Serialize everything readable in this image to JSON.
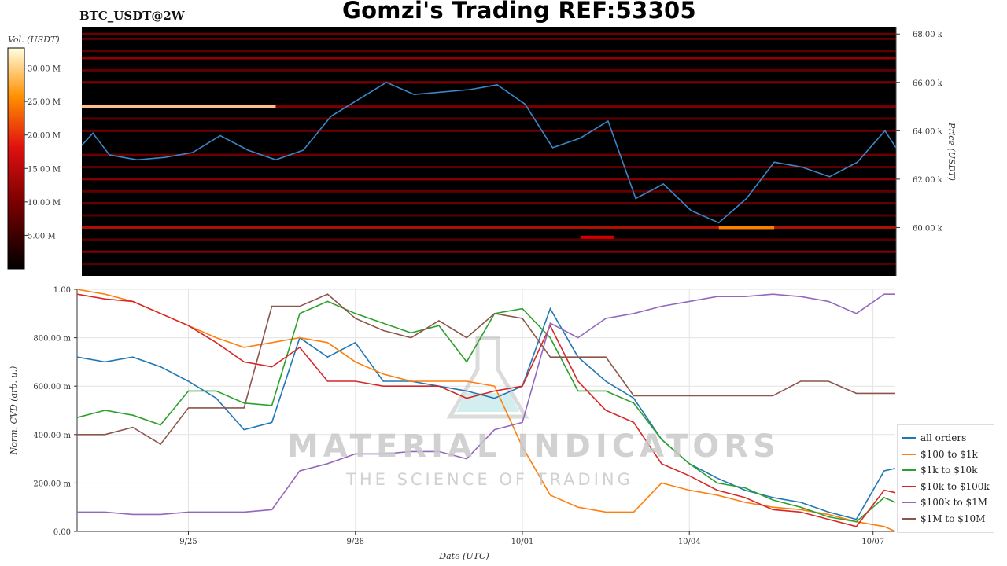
{
  "header": {
    "pair": "BTC_USDT@2W",
    "title": "Gomzi's Trading REF:53305"
  },
  "watermark": {
    "main": "MATERIAL INDICATORS",
    "sub": "THE SCIENCE OF TRADING"
  },
  "chart_data": [
    {
      "type": "heatmap",
      "title": "Gomzi's Trading REF:53305",
      "subtitle": "BTC_USDT@2W",
      "ylabel": "Price (USDT)",
      "colorbar": {
        "label": "Vol. (USDT)",
        "ticks": [
          "5.00 M",
          "10.00 M",
          "15.00 M",
          "20.00 M",
          "25.00 M",
          "30.00 M"
        ],
        "range": [
          0,
          33
        ]
      },
      "ylim": [
        58000,
        68300
      ],
      "yticks": [
        60000,
        62000,
        64000,
        66000,
        68000
      ],
      "ytick_labels": [
        "60.00 k",
        "62.00 k",
        "64.00 k",
        "66.00 k",
        "68.00 k"
      ],
      "xlim": [
        0,
        14.7
      ],
      "colors": {
        "background": "#000000",
        "price_line": "#3a86c8"
      },
      "price_line": {
        "x": [
          0,
          0.2,
          0.5,
          1,
          1.5,
          2,
          2.5,
          3,
          3.5,
          4,
          4.5,
          5,
          5.5,
          6,
          6.5,
          7,
          7.5,
          8,
          8.5,
          9,
          9.5,
          10,
          10.5,
          11,
          11.5,
          12,
          12.5,
          13,
          13.5,
          14,
          14.5,
          14.7
        ],
        "y": [
          63400,
          63900,
          63000,
          62800,
          62900,
          63100,
          63800,
          63200,
          62800,
          63200,
          64600,
          65300,
          66000,
          65500,
          65600,
          65700,
          65900,
          65100,
          63300,
          63700,
          64400,
          61200,
          61800,
          60700,
          60200,
          61200,
          62700,
          62500,
          62100,
          62700,
          64000,
          63300
        ]
      },
      "liquidity_bands": [
        {
          "price": 68000,
          "intensity": 0.35
        },
        {
          "price": 67800,
          "intensity": 0.3
        },
        {
          "price": 67300,
          "intensity": 0.28
        },
        {
          "price": 67000,
          "intensity": 0.5
        },
        {
          "price": 66500,
          "intensity": 0.3
        },
        {
          "price": 66000,
          "intensity": 0.45
        },
        {
          "price": 65000,
          "intensity": 0.4
        },
        {
          "price": 64500,
          "intensity": 0.3
        },
        {
          "price": 64000,
          "intensity": 0.35
        },
        {
          "price": 63000,
          "intensity": 0.35
        },
        {
          "price": 62500,
          "intensity": 0.3
        },
        {
          "price": 62000,
          "intensity": 0.45
        },
        {
          "price": 61500,
          "intensity": 0.3
        },
        {
          "price": 61000,
          "intensity": 0.35
        },
        {
          "price": 60500,
          "intensity": 0.25
        },
        {
          "price": 60000,
          "intensity": 0.6
        },
        {
          "price": 59500,
          "intensity": 0.25
        },
        {
          "price": 59000,
          "intensity": 0.45
        },
        {
          "price": 58500,
          "intensity": 0.25
        }
      ],
      "hot_spots": [
        {
          "price": 65000,
          "x_start": 0,
          "x_end": 3.5,
          "intensity": 1.0
        },
        {
          "price": 60000,
          "x_start": 11.5,
          "x_end": 12.5,
          "intensity": 0.85
        },
        {
          "price": 59600,
          "x_start": 9.0,
          "x_end": 9.6,
          "intensity": 0.55
        }
      ]
    },
    {
      "type": "line",
      "xlabel": "Date (UTC)",
      "ylabel": "Norm. CVD (arb. u.)",
      "ylim": [
        0,
        1
      ],
      "yticks": [
        0,
        0.2,
        0.4,
        0.6,
        0.8,
        1.0
      ],
      "ytick_labels": [
        "0.00",
        "200.00 m",
        "400.00 m",
        "600.00 m",
        "800.00 m",
        "1.00"
      ],
      "xlim": [
        0,
        14.7
      ],
      "xticks": [
        2,
        5,
        8,
        11,
        14.3
      ],
      "xtick_labels": [
        "9/25",
        "9/28",
        "10/01",
        "10/04",
        "10/07"
      ],
      "grid": true,
      "legend_position": "bottom-right",
      "x": [
        0,
        0.5,
        1,
        1.5,
        2,
        2.5,
        3,
        3.5,
        4,
        4.5,
        5,
        5.5,
        6,
        6.5,
        7,
        7.5,
        8,
        8.5,
        9,
        9.5,
        10,
        10.5,
        11,
        11.5,
        12,
        12.5,
        13,
        13.5,
        14,
        14.5,
        14.7
      ],
      "series": [
        {
          "name": "all orders",
          "color": "#1f77b4",
          "values": [
            0.72,
            0.7,
            0.72,
            0.68,
            0.62,
            0.55,
            0.42,
            0.45,
            0.8,
            0.72,
            0.78,
            0.62,
            0.62,
            0.6,
            0.58,
            0.55,
            0.6,
            0.92,
            0.72,
            0.62,
            0.55,
            0.38,
            0.28,
            0.22,
            0.17,
            0.14,
            0.12,
            0.08,
            0.05,
            0.25,
            0.26
          ]
        },
        {
          "name": "$100 to $1k",
          "color": "#ff7f0e",
          "values": [
            1.0,
            0.98,
            0.95,
            0.9,
            0.85,
            0.8,
            0.76,
            0.78,
            0.8,
            0.78,
            0.7,
            0.65,
            0.62,
            0.62,
            0.62,
            0.6,
            0.35,
            0.15,
            0.1,
            0.08,
            0.08,
            0.2,
            0.17,
            0.15,
            0.12,
            0.1,
            0.09,
            0.07,
            0.04,
            0.02,
            0.0
          ]
        },
        {
          "name": "$1k to $10k",
          "color": "#2ca02c",
          "values": [
            0.47,
            0.5,
            0.48,
            0.44,
            0.58,
            0.58,
            0.53,
            0.52,
            0.9,
            0.95,
            0.9,
            0.86,
            0.82,
            0.85,
            0.7,
            0.9,
            0.92,
            0.8,
            0.58,
            0.58,
            0.53,
            0.38,
            0.28,
            0.2,
            0.18,
            0.13,
            0.1,
            0.06,
            0.04,
            0.14,
            0.12
          ]
        },
        {
          "name": "$10k to $100k",
          "color": "#d62728",
          "values": [
            0.98,
            0.96,
            0.95,
            0.9,
            0.85,
            0.78,
            0.7,
            0.68,
            0.76,
            0.62,
            0.62,
            0.6,
            0.6,
            0.6,
            0.55,
            0.58,
            0.6,
            0.85,
            0.62,
            0.5,
            0.45,
            0.28,
            0.23,
            0.17,
            0.14,
            0.09,
            0.08,
            0.05,
            0.02,
            0.17,
            0.16
          ]
        },
        {
          "name": "$100k to $1M",
          "color": "#9467bd",
          "values": [
            0.08,
            0.08,
            0.07,
            0.07,
            0.08,
            0.08,
            0.08,
            0.09,
            0.25,
            0.28,
            0.32,
            0.32,
            0.33,
            0.33,
            0.3,
            0.42,
            0.45,
            0.86,
            0.8,
            0.88,
            0.9,
            0.93,
            0.95,
            0.97,
            0.97,
            0.98,
            0.97,
            0.95,
            0.9,
            0.98,
            0.98
          ]
        },
        {
          "name": "$1M to $10M",
          "color": "#8c564b",
          "values": [
            0.4,
            0.4,
            0.43,
            0.36,
            0.51,
            0.51,
            0.51,
            0.93,
            0.93,
            0.98,
            0.88,
            0.83,
            0.8,
            0.87,
            0.8,
            0.9,
            0.88,
            0.72,
            0.72,
            0.72,
            0.56,
            0.56,
            0.56,
            0.56,
            0.56,
            0.56,
            0.62,
            0.62,
            0.57,
            0.57,
            0.57
          ]
        }
      ]
    }
  ]
}
